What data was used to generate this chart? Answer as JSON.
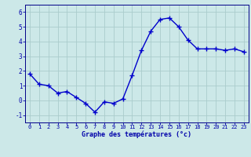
{
  "x": [
    0,
    1,
    2,
    3,
    4,
    5,
    6,
    7,
    8,
    9,
    10,
    11,
    12,
    13,
    14,
    15,
    16,
    17,
    18,
    19,
    20,
    21,
    22,
    23
  ],
  "y": [
    1.8,
    1.1,
    1.0,
    0.5,
    0.6,
    0.2,
    -0.2,
    -0.8,
    -0.1,
    -0.2,
    0.1,
    1.7,
    3.4,
    4.7,
    5.5,
    5.6,
    5.0,
    4.1,
    3.5,
    3.5,
    3.5,
    3.4,
    3.5,
    3.3
  ],
  "xlabel": "Graphe des températures (°c)",
  "ylim": [
    -1.5,
    6.5
  ],
  "xlim": [
    -0.5,
    23.5
  ],
  "yticks": [
    -1,
    0,
    1,
    2,
    3,
    4,
    5,
    6
  ],
  "xticks": [
    0,
    1,
    2,
    3,
    4,
    5,
    6,
    7,
    8,
    9,
    10,
    11,
    12,
    13,
    14,
    15,
    16,
    17,
    18,
    19,
    20,
    21,
    22,
    23
  ],
  "line_color": "#0000cc",
  "marker_color": "#0000cc",
  "bg_color": "#cce8e8",
  "grid_color": "#aacccc",
  "axis_color": "#000088",
  "tick_label_color": "#0000aa",
  "xlabel_color": "#0000aa",
  "line_width": 1.0,
  "marker_size": 4,
  "tick_fontsize": 5.0,
  "xlabel_fontsize": 6.0
}
